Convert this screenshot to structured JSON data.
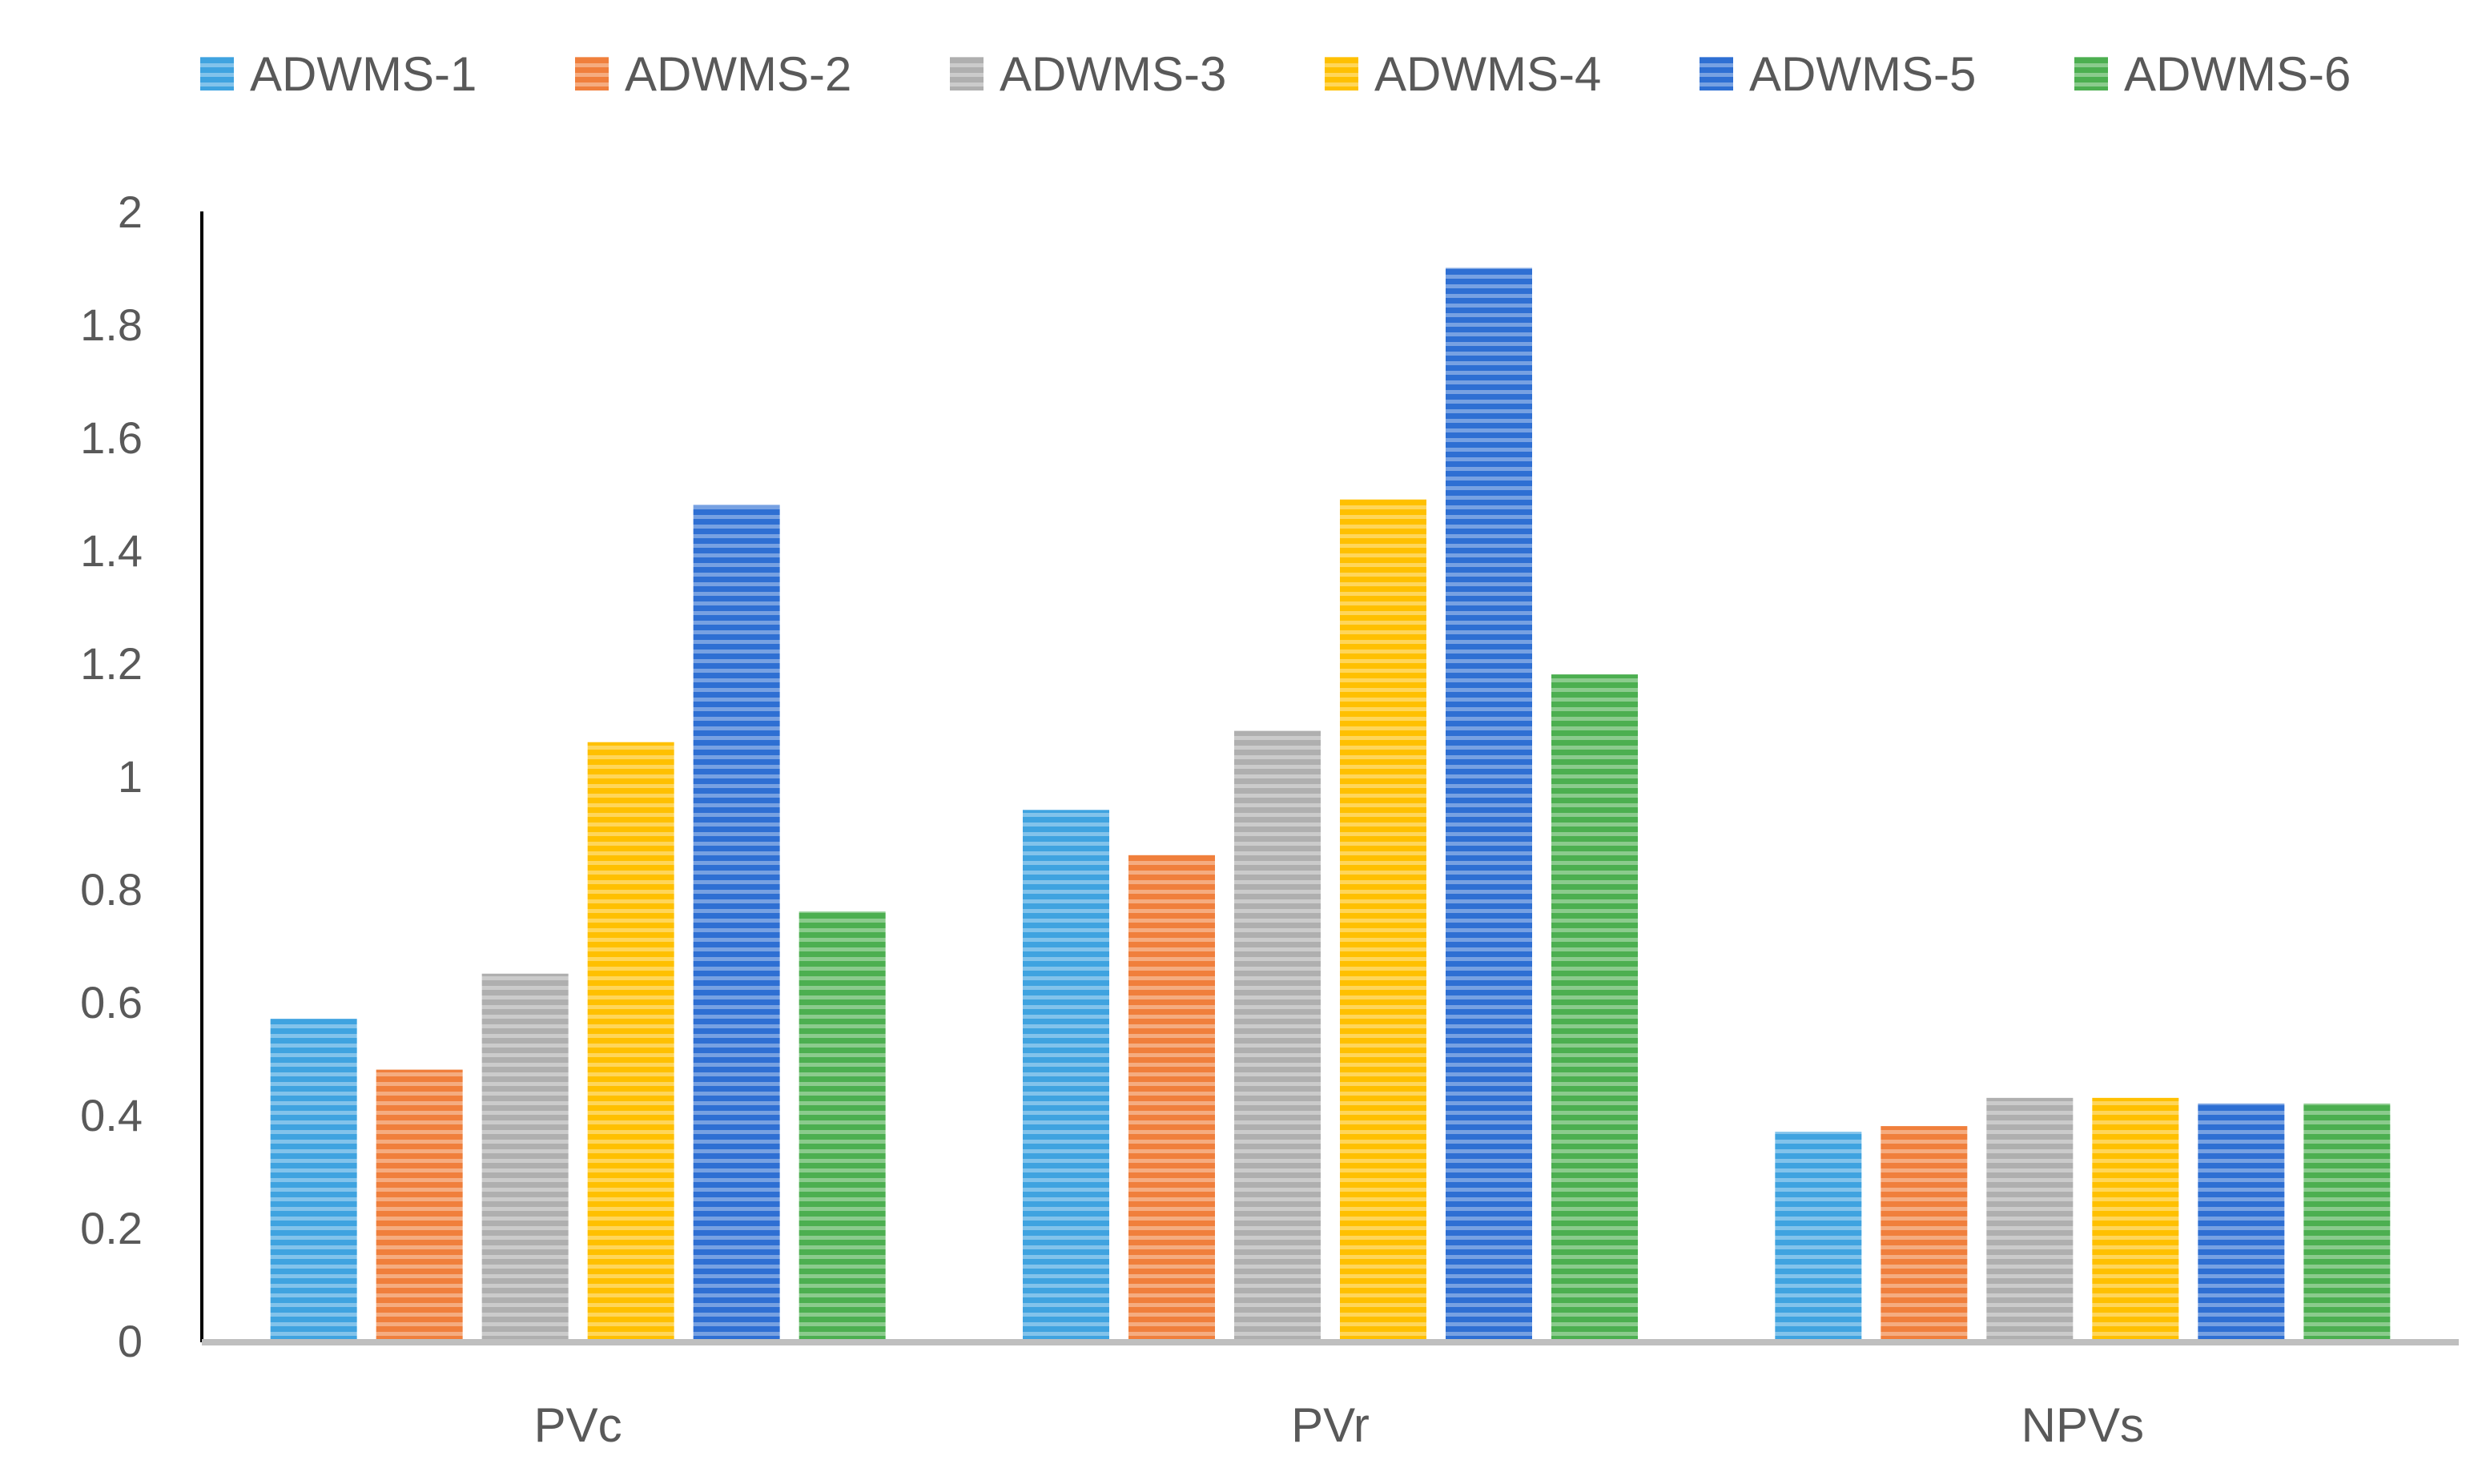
{
  "chart_data": {
    "type": "bar",
    "title": "",
    "xlabel": "",
    "ylabel": "",
    "categories": [
      "PVc",
      "PVr",
      "NPVs"
    ],
    "ylim": [
      0,
      2
    ],
    "yticks": [
      "0",
      "0.2",
      "0.4",
      "0.6",
      "0.8",
      "1",
      "1.2",
      "1.4",
      "1.6",
      "1.8",
      "2"
    ],
    "ytick_values": [
      0,
      0.2,
      0.4,
      0.6,
      0.8,
      1.0,
      1.2,
      1.4,
      1.6,
      1.8,
      2.0
    ],
    "grid": false,
    "legend_position": "top",
    "series": [
      {
        "name": "ADWMS-1",
        "color": "#3FA3E0",
        "values": [
          0.57,
          0.94,
          0.37
        ]
      },
      {
        "name": "ADWMS-2",
        "color": "#F07F3C",
        "values": [
          0.48,
          0.86,
          0.38
        ]
      },
      {
        "name": "ADWMS-3",
        "color": "#AFAFAF",
        "values": [
          0.65,
          1.08,
          0.43
        ]
      },
      {
        "name": "ADWMS-4",
        "color": "#FFC000",
        "values": [
          1.06,
          1.49,
          0.43
        ]
      },
      {
        "name": "ADWMS-5",
        "color": "#2E6FD3",
        "values": [
          1.48,
          1.9,
          0.42
        ]
      },
      {
        "name": "ADWMS-6",
        "color": "#4CAF50",
        "values": [
          0.76,
          1.18,
          0.42
        ]
      }
    ]
  }
}
